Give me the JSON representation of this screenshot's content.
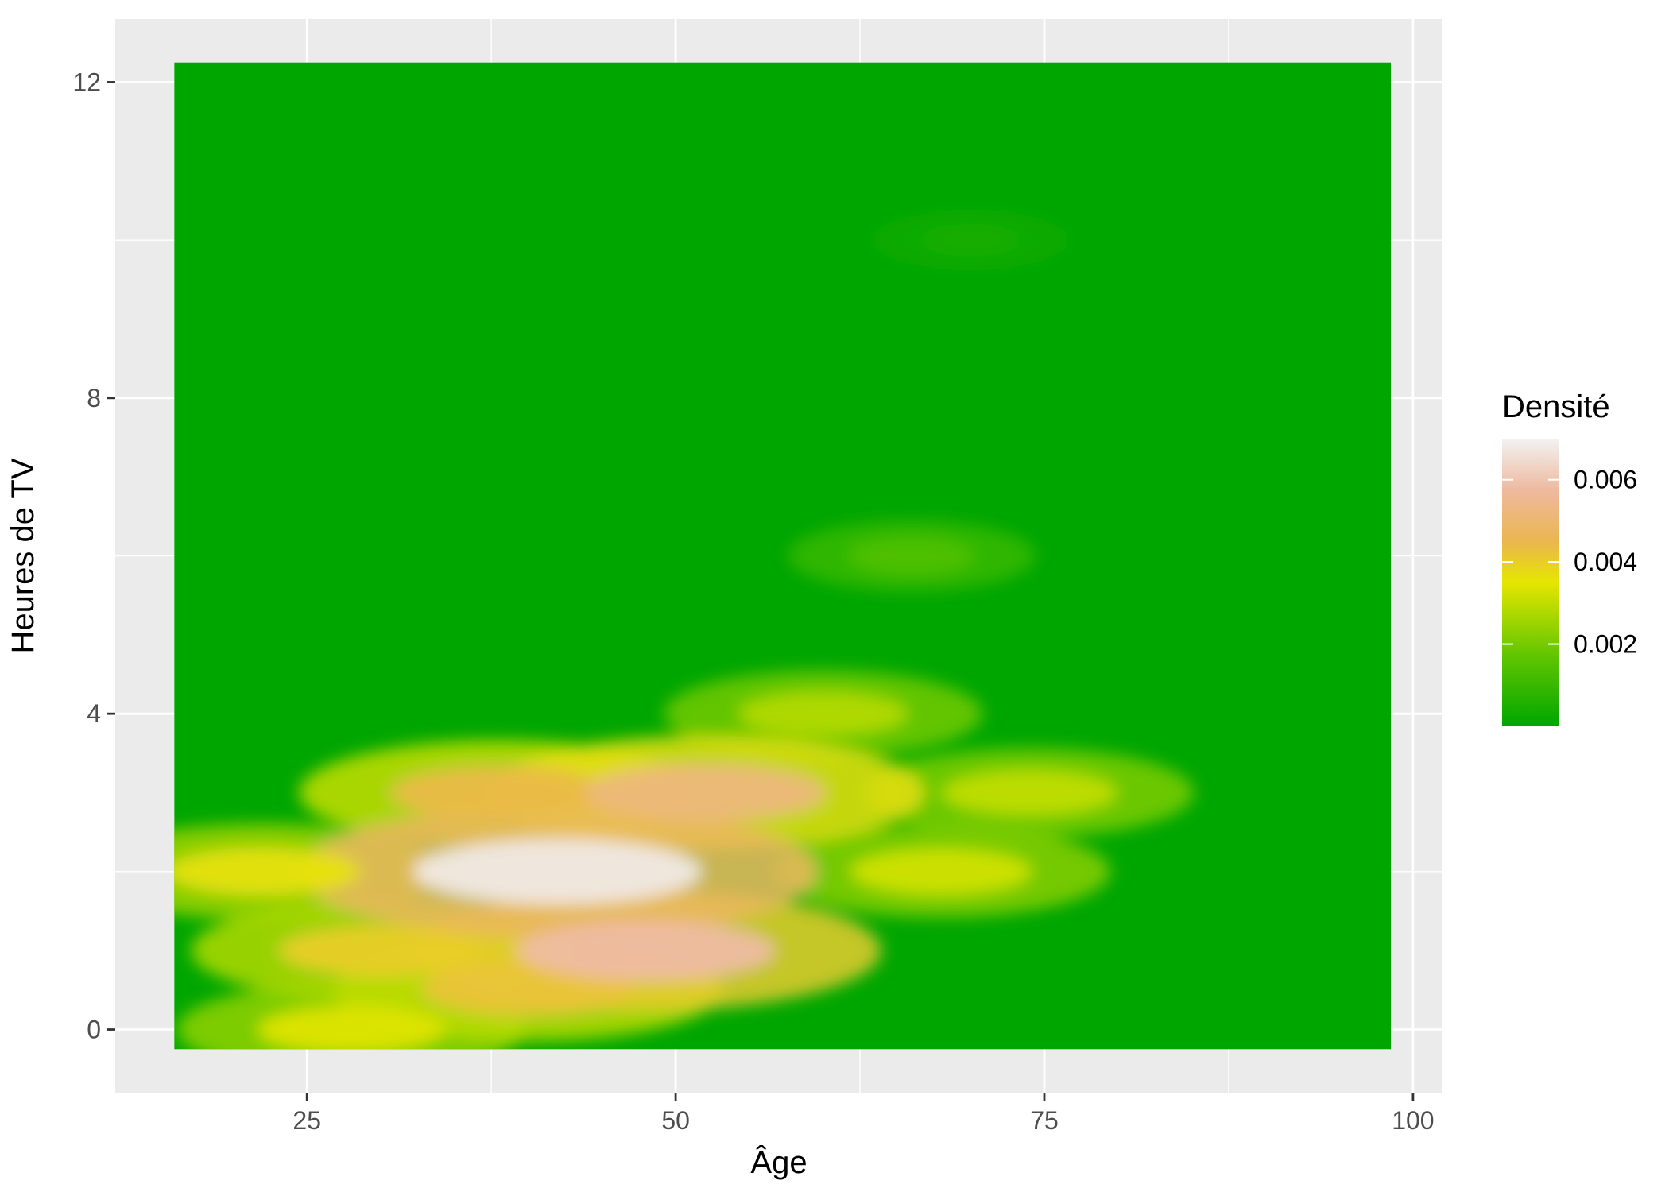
{
  "chart_data": {
    "type": "heatmap",
    "title": "",
    "xlabel": "Âge",
    "ylabel": "Heures de TV",
    "xlim": [
      12,
      102
    ],
    "ylim": [
      -0.8,
      12.8
    ],
    "x_ticks": [
      25,
      50,
      75,
      100
    ],
    "x_tick_labels": [
      "25",
      "50",
      "75",
      "100"
    ],
    "y_ticks": [
      0,
      4,
      8,
      12
    ],
    "y_tick_labels": [
      "0",
      "4",
      "8",
      "12"
    ],
    "grid": true,
    "data_extent": {
      "x": [
        16,
        98.5
      ],
      "y": [
        -0.25,
        12.25
      ]
    },
    "density_peaks": [
      {
        "age": 42,
        "hours": 2,
        "density": 0.0068
      },
      {
        "age": 48,
        "hours": 1,
        "density": 0.0058
      },
      {
        "age": 52,
        "hours": 3,
        "density": 0.0052
      },
      {
        "age": 38,
        "hours": 3,
        "density": 0.0044
      },
      {
        "age": 40,
        "hours": 0.5,
        "density": 0.0042
      },
      {
        "age": 30,
        "hours": 1,
        "density": 0.004
      },
      {
        "age": 22,
        "hours": 2,
        "density": 0.0036
      },
      {
        "age": 28,
        "hours": 0,
        "density": 0.0034
      },
      {
        "age": 68,
        "hours": 2,
        "density": 0.0032
      },
      {
        "age": 74,
        "hours": 3,
        "density": 0.003
      },
      {
        "age": 60,
        "hours": 4,
        "density": 0.0028
      },
      {
        "age": 66,
        "hours": 6,
        "density": 0.0014
      },
      {
        "age": 70,
        "hours": 10,
        "density": 0.0004
      }
    ],
    "legend": {
      "title": "Densité",
      "position": "right",
      "range": [
        0,
        0.007
      ],
      "breaks": [
        0.002,
        0.004,
        0.006
      ],
      "break_labels": [
        "0.002",
        "0.004",
        "0.006"
      ]
    },
    "colors": {
      "panel_background": "#EBEBEB",
      "grid_line": "#FFFFFF",
      "low": "#00A600",
      "mid_low": "#63C600",
      "mid": "#E6E600",
      "mid_high": "#EAB64E",
      "high_mid": "#EEB99F",
      "high": "#F2F2F2"
    }
  }
}
